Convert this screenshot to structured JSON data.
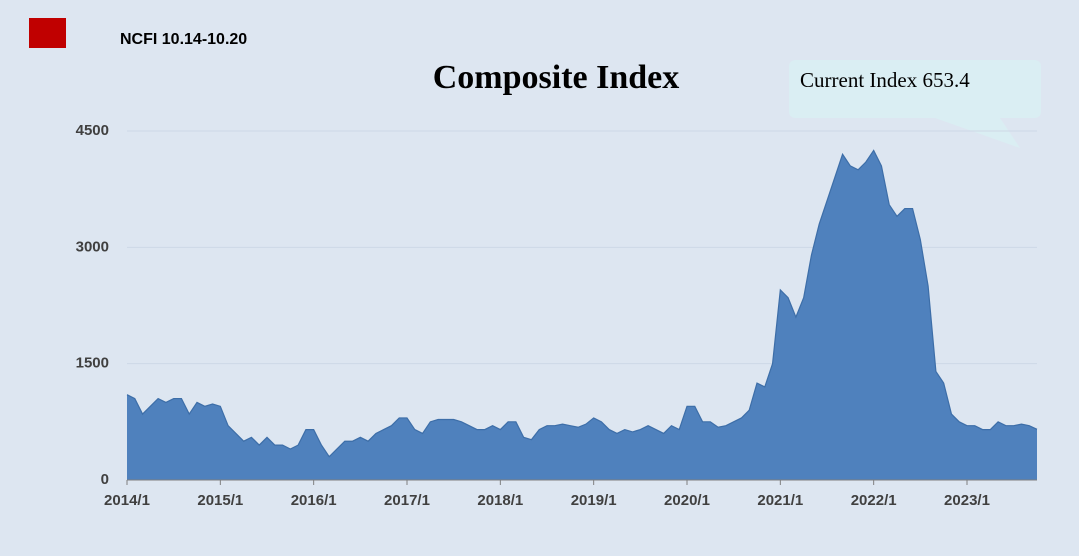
{
  "header": "NCFI 10.14-10.20",
  "chart_data": {
    "type": "area",
    "title": "Composite Index",
    "annotation": "Current Index 653.4",
    "color": "#4f81bd",
    "x": [
      "2014/1",
      "2014/2",
      "2014/3",
      "2014/4",
      "2014/5",
      "2014/6",
      "2014/7",
      "2014/8",
      "2014/9",
      "2014/10",
      "2014/11",
      "2014/12",
      "2015/1",
      "2015/2",
      "2015/3",
      "2015/4",
      "2015/5",
      "2015/6",
      "2015/7",
      "2015/8",
      "2015/9",
      "2015/10",
      "2015/11",
      "2015/12",
      "2016/1",
      "2016/2",
      "2016/3",
      "2016/4",
      "2016/5",
      "2016/6",
      "2016/7",
      "2016/8",
      "2016/9",
      "2016/10",
      "2016/11",
      "2016/12",
      "2017/1",
      "2017/2",
      "2017/3",
      "2017/4",
      "2017/5",
      "2017/6",
      "2017/7",
      "2017/8",
      "2017/9",
      "2017/10",
      "2017/11",
      "2017/12",
      "2018/1",
      "2018/2",
      "2018/3",
      "2018/4",
      "2018/5",
      "2018/6",
      "2018/7",
      "2018/8",
      "2018/9",
      "2018/10",
      "2018/11",
      "2018/12",
      "2019/1",
      "2019/2",
      "2019/3",
      "2019/4",
      "2019/5",
      "2019/6",
      "2019/7",
      "2019/8",
      "2019/9",
      "2019/10",
      "2019/11",
      "2019/12",
      "2020/1",
      "2020/2",
      "2020/3",
      "2020/4",
      "2020/5",
      "2020/6",
      "2020/7",
      "2020/8",
      "2020/9",
      "2020/10",
      "2020/11",
      "2020/12",
      "2021/1",
      "2021/2",
      "2021/3",
      "2021/4",
      "2021/5",
      "2021/6",
      "2021/7",
      "2021/8",
      "2021/9",
      "2021/10",
      "2021/11",
      "2021/12",
      "2022/1",
      "2022/2",
      "2022/3",
      "2022/4",
      "2022/5",
      "2022/6",
      "2022/7",
      "2022/8",
      "2022/9",
      "2022/10",
      "2022/11",
      "2022/12",
      "2023/1",
      "2023/2",
      "2023/3",
      "2023/4",
      "2023/5",
      "2023/6",
      "2023/7",
      "2023/8",
      "2023/9",
      "2023/10"
    ],
    "values": [
      1100,
      1050,
      850,
      950,
      1050,
      1000,
      1050,
      1050,
      850,
      1000,
      950,
      980,
      950,
      700,
      600,
      500,
      550,
      450,
      550,
      450,
      450,
      400,
      450,
      650,
      650,
      450,
      300,
      400,
      500,
      500,
      550,
      500,
      600,
      650,
      700,
      800,
      800,
      650,
      600,
      750,
      780,
      780,
      780,
      750,
      700,
      650,
      650,
      700,
      650,
      750,
      750,
      550,
      520,
      650,
      700,
      700,
      720,
      700,
      680,
      720,
      800,
      750,
      650,
      600,
      650,
      620,
      650,
      700,
      650,
      600,
      700,
      650,
      950,
      950,
      750,
      750,
      680,
      700,
      750,
      800,
      900,
      1250,
      1200,
      1500,
      2450,
      2350,
      2100,
      2350,
      2900,
      3300,
      3600,
      3900,
      4200,
      4050,
      4000,
      4100,
      4250,
      4050,
      3550,
      3400,
      3500,
      3500,
      3100,
      2500,
      1400,
      1250,
      850,
      750,
      700,
      700,
      650,
      650,
      750,
      700,
      700,
      720,
      700,
      653.4
    ],
    "xticks": [
      "2014/1",
      "2015/1",
      "2016/1",
      "2017/1",
      "2018/1",
      "2019/1",
      "2020/1",
      "2021/1",
      "2022/1",
      "2023/1"
    ],
    "ylim": [
      0,
      4500
    ],
    "yticks": [
      0,
      1500,
      3000,
      4500
    ],
    "grid": true
  }
}
